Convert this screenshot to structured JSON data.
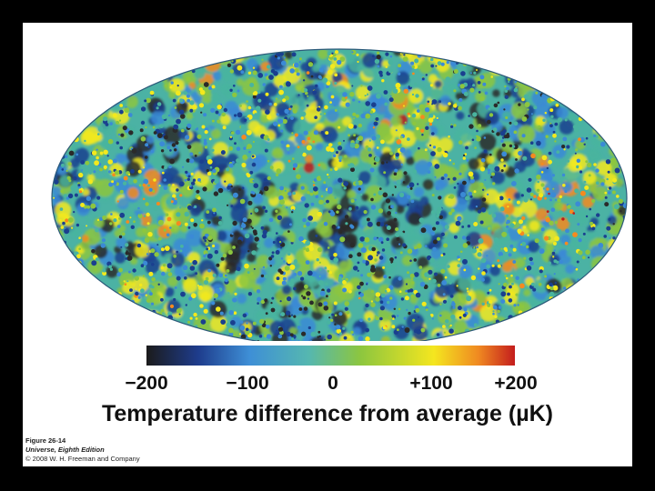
{
  "image": {
    "subject": "cmb-temperature-map",
    "colormap": [
      "#2a2a2a",
      "#1a3f8f",
      "#3b8ad6",
      "#49b49f",
      "#8cc63f",
      "#f3e91d",
      "#f58a1f",
      "#c01a1a"
    ]
  },
  "colorbar": {
    "tick_labels": [
      "−200",
      "−100",
      "0",
      "+100",
      "+200"
    ],
    "caption": "Temperature difference from average (µK)"
  },
  "credit": {
    "figure": "Figure 26-14",
    "book": "Universe, Eighth Edition",
    "copyright": "© 2008 W. H. Freeman and Company"
  }
}
